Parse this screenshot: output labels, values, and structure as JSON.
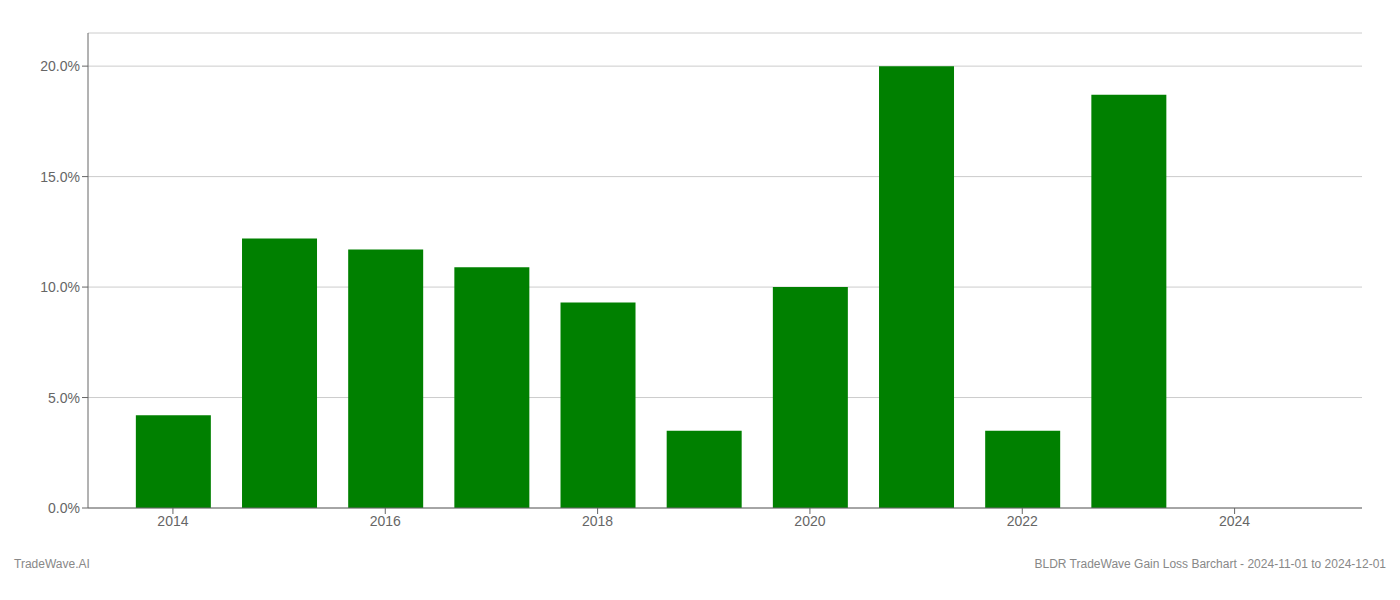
{
  "chart_data": {
    "type": "bar",
    "x": [
      2014,
      2015,
      2016,
      2017,
      2018,
      2019,
      2020,
      2021,
      2022,
      2023
    ],
    "values": [
      0.042,
      0.122,
      0.117,
      0.109,
      0.093,
      0.035,
      0.1,
      0.2,
      0.035,
      0.187
    ],
    "color": "#008000",
    "xlim": [
      2013.2,
      2025.2
    ],
    "xticks": [
      2014,
      2016,
      2018,
      2020,
      2022,
      2024
    ],
    "ylim": [
      0,
      0.215
    ],
    "yticks": [
      {
        "value": 0.0,
        "label": "0.0%"
      },
      {
        "value": 0.05,
        "label": "5.0%"
      },
      {
        "value": 0.1,
        "label": "10.0%"
      },
      {
        "value": 0.15,
        "label": "15.0%"
      },
      {
        "value": 0.2,
        "label": "20.0%"
      }
    ],
    "grid": true,
    "annotations": [
      "TradeWave.AI",
      "BLDR TradeWave Gain Loss Barchart - 2024-11-01 to 2024-12-01"
    ]
  }
}
